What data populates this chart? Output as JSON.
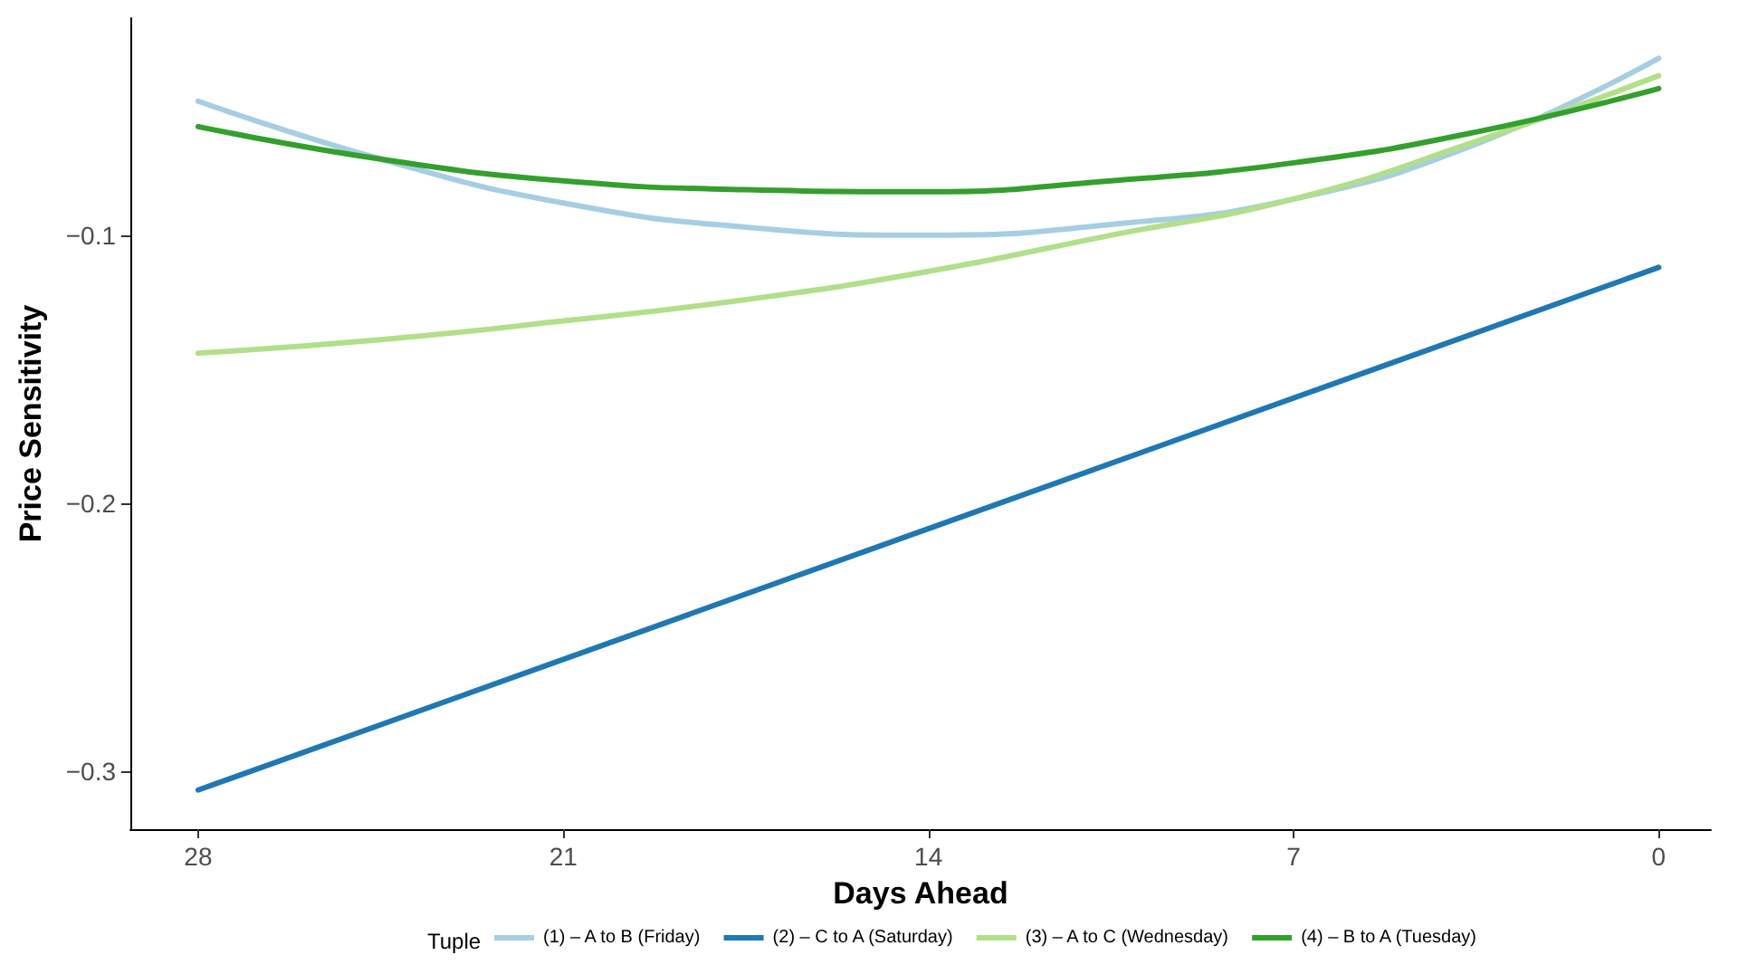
{
  "chart_data": {
    "type": "line",
    "xlabel": "Days Ahead",
    "ylabel": "Price Sensitivity",
    "legend_title": "Tuple",
    "legend": "bottom",
    "grid": false,
    "marker": "none",
    "line_style": "solid",
    "xlim": [
      29.3,
      -1
    ],
    "xticks": [
      28,
      21,
      14,
      7,
      0
    ],
    "ylim": [
      -0.3216,
      -0.019
    ],
    "yticks": [
      {
        "value": -0.3,
        "label": "−0.3"
      },
      {
        "value": -0.2,
        "label": "−0.2"
      },
      {
        "value": -0.1,
        "label": "−0.1"
      }
    ],
    "x": [
      28,
      24.5,
      21,
      17.5,
      14,
      10.5,
      7,
      3.5,
      0
    ],
    "series": [
      {
        "name": "(1) – A to B (Friday)",
        "color": "#a6cee3",
        "values": [
          -0.05,
          -0.0716,
          -0.088,
          -0.097,
          -0.1,
          -0.096,
          -0.0865,
          -0.066,
          -0.034
        ]
      },
      {
        "name": "(2) – C to A (Saturday)",
        "color": "#1f78b4",
        "x": [
          28,
          0
        ],
        "values": [
          -0.307,
          -0.112
        ]
      },
      {
        "name": "(3) – A to C (Wednesday)",
        "color": "#b2df8a",
        "values": [
          -0.144,
          -0.139,
          -0.132,
          -0.124,
          -0.1135,
          -0.1,
          -0.0865,
          -0.065,
          -0.0405
        ]
      },
      {
        "name": "(4) – B to A (Tuesday)",
        "color": "#33a02c",
        "values": [
          -0.0595,
          -0.0716,
          -0.0797,
          -0.083,
          -0.0838,
          -0.0797,
          -0.073,
          -0.0615,
          -0.0453
        ]
      }
    ]
  }
}
